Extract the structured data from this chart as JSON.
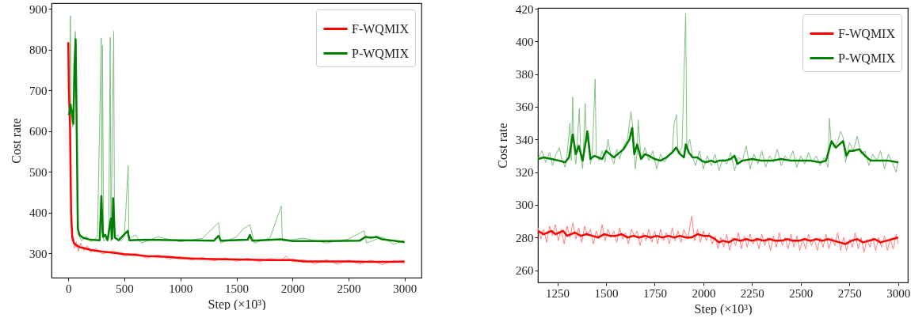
{
  "chart_data": [
    {
      "type": "line",
      "xlabel": "Step (×10³)",
      "ylabel": "Cost rate",
      "xlim": [
        -150,
        3150
      ],
      "ylim": [
        240,
        914
      ],
      "xticks": [
        0,
        500,
        1000,
        1500,
        2000,
        2500,
        3000
      ],
      "yticks": [
        300,
        400,
        500,
        600,
        700,
        800,
        900
      ],
      "grid": false,
      "legend": "top right",
      "series": [
        {
          "color": "#ff8080",
          "x": [
            0,
            5,
            15,
            25,
            35,
            45,
            55,
            70,
            90,
            110,
            140,
            170,
            200,
            250,
            300,
            400,
            500,
            600,
            700,
            800,
            900,
            1000,
            1100,
            1200,
            1300,
            1400,
            1500,
            1600,
            1700,
            1800,
            1900,
            1940,
            2000,
            2100,
            2200,
            2300,
            2400,
            2500,
            2600,
            2700,
            2800,
            2900,
            3000
          ],
          "values": [
            818,
            720,
            610,
            380,
            330,
            340,
            312,
            328,
            305,
            325,
            306,
            318,
            302,
            312,
            298,
            306,
            293,
            300,
            288,
            296,
            285,
            292,
            283,
            290,
            281,
            289,
            280,
            288,
            279,
            287,
            281,
            293,
            279,
            284,
            274,
            284,
            273,
            283,
            273,
            283,
            272,
            282,
            275
          ]
        },
        {
          "color": "#80c080",
          "x": [
            0,
            10,
            19,
            25,
            40,
            55,
            61,
            70,
            80,
            90,
            120,
            160,
            200,
            260,
            294,
            298,
            305,
            315,
            360,
            374,
            380,
            405,
            412,
            440,
            470,
            500,
            534,
            540,
            600,
            650,
            800,
            1000,
            1200,
            1340,
            1360,
            1500,
            1560,
            1620,
            1660,
            1800,
            1900,
            1910,
            2100,
            2300,
            2500,
            2640,
            2660,
            2800,
            2900,
            3000
          ],
          "values": [
            640,
            650,
            883,
            640,
            610,
            700,
            845,
            810,
            500,
            345,
            330,
            342,
            328,
            340,
            828,
            350,
            810,
            330,
            338,
            830,
            330,
            845,
            340,
            345,
            330,
            340,
            515,
            335,
            345,
            325,
            340,
            328,
            337,
            375,
            325,
            340,
            360,
            370,
            325,
            338,
            416,
            330,
            337,
            325,
            335,
            355,
            325,
            340,
            322,
            332
          ]
        },
        {
          "name": "F-WQMIX",
          "color": "#ff0000",
          "x": [
            0,
            5,
            15,
            25,
            35,
            50,
            70,
            100,
            150,
            200,
            300,
            400,
            500,
            600,
            700,
            800,
            900,
            1000,
            1200,
            1400,
            1600,
            1800,
            2000,
            2100,
            2300,
            2500,
            2700,
            2900,
            3000
          ],
          "values": [
            818,
            700,
            620,
            400,
            340,
            325,
            320,
            315,
            312,
            308,
            304,
            301,
            298,
            296,
            293,
            292,
            291,
            288,
            286,
            285,
            284,
            283,
            283,
            280,
            280,
            280,
            279,
            279,
            280
          ]
        },
        {
          "name": "P-WQMIX",
          "color": "#008000",
          "x": [
            0,
            10,
            20,
            35,
            45,
            55,
            65,
            75,
            85,
            100,
            130,
            200,
            280,
            295,
            310,
            330,
            350,
            380,
            390,
            400,
            415,
            450,
            530,
            545,
            700,
            1000,
            1300,
            1340,
            1360,
            1600,
            1620,
            1640,
            1900,
            2000,
            2300,
            2600,
            2650,
            2700,
            2750,
            2800,
            3000
          ],
          "values": [
            640,
            642,
            665,
            640,
            618,
            760,
            825,
            600,
            360,
            345,
            338,
            333,
            332,
            440,
            340,
            345,
            332,
            385,
            335,
            435,
            338,
            332,
            355,
            332,
            333,
            332,
            331,
            343,
            331,
            333,
            345,
            331,
            334,
            330,
            330,
            331,
            340,
            338,
            340,
            334,
            327
          ]
        }
      ]
    },
    {
      "type": "line",
      "xlabel": "Step (×10³)",
      "ylabel": "Cost rate",
      "xlim": [
        1150,
        3050
      ],
      "ylim": [
        252.5,
        420.5
      ],
      "xticks": [
        1250,
        1500,
        1750,
        2000,
        2250,
        2500,
        2750,
        3000
      ],
      "yticks": [
        260,
        280,
        300,
        320,
        340,
        360,
        380,
        400,
        420
      ],
      "grid": false,
      "legend": "top right",
      "series": [
        {
          "color": "#ff8080",
          "x": [
            1150,
            1165,
            1180,
            1195,
            1210,
            1225,
            1240,
            1255,
            1270,
            1285,
            1300,
            1315,
            1330,
            1345,
            1360,
            1375,
            1390,
            1405,
            1420,
            1435,
            1450,
            1465,
            1480,
            1495,
            1510,
            1525,
            1540,
            1555,
            1570,
            1585,
            1600,
            1615,
            1630,
            1645,
            1660,
            1675,
            1690,
            1705,
            1720,
            1735,
            1750,
            1765,
            1780,
            1795,
            1810,
            1825,
            1840,
            1855,
            1870,
            1885,
            1900,
            1920,
            1940,
            1955,
            1970,
            1985,
            2000,
            2015,
            2030,
            2045,
            2060,
            2075,
            2090,
            2105,
            2120,
            2135,
            2150,
            2165,
            2180,
            2195,
            2210,
            2225,
            2240,
            2255,
            2270,
            2285,
            2300,
            2315,
            2330,
            2345,
            2360,
            2375,
            2390,
            2405,
            2420,
            2435,
            2450,
            2465,
            2480,
            2495,
            2510,
            2525,
            2540,
            2555,
            2570,
            2585,
            2600,
            2615,
            2630,
            2645,
            2660,
            2675,
            2690,
            2705,
            2720,
            2735,
            2750,
            2765,
            2780,
            2795,
            2810,
            2825,
            2840,
            2855,
            2870,
            2885,
            2900,
            2915,
            2930,
            2945,
            2960,
            2975,
            2990,
            3000
          ],
          "values": [
            286,
            279,
            285,
            277,
            287,
            281,
            288,
            278,
            285,
            276,
            287,
            280,
            289,
            279,
            286,
            277,
            287,
            281,
            285,
            276,
            284,
            279,
            288,
            278,
            285,
            280,
            284,
            277,
            286,
            279,
            283,
            276,
            285,
            281,
            284,
            275,
            283,
            278,
            285,
            277,
            284,
            276,
            285,
            278,
            283,
            276,
            286,
            278,
            284,
            277,
            285,
            279,
            293,
            278,
            285,
            277,
            284,
            278,
            283,
            276,
            281,
            273,
            280,
            274,
            282,
            272,
            280,
            275,
            283,
            273,
            281,
            274,
            282,
            276,
            280,
            273,
            282,
            275,
            280,
            272,
            281,
            274,
            283,
            275,
            280,
            273,
            282,
            274,
            281,
            272,
            279,
            273,
            282,
            275,
            279,
            272,
            280,
            274,
            282,
            273,
            280,
            275,
            283,
            272,
            280,
            272,
            279,
            274,
            283,
            273,
            280,
            271,
            279,
            274,
            280,
            272,
            280,
            274,
            281,
            272,
            279,
            273,
            282,
            276
          ]
        },
        {
          "color": "#80c080",
          "x": [
            1150,
            1170,
            1190,
            1210,
            1225,
            1240,
            1260,
            1275,
            1290,
            1300,
            1315,
            1322,
            1329,
            1335,
            1345,
            1363,
            1370,
            1380,
            1393,
            1400,
            1410,
            1420,
            1430,
            1444,
            1450,
            1465,
            1480,
            1495,
            1510,
            1525,
            1540,
            1555,
            1570,
            1590,
            1610,
            1628,
            1640,
            1650,
            1660,
            1665,
            1680,
            1700,
            1720,
            1740,
            1760,
            1780,
            1800,
            1820,
            1840,
            1850,
            1862,
            1870,
            1890,
            1909,
            1915,
            1930,
            1945,
            1960,
            1980,
            2000,
            2020,
            2040,
            2060,
            2080,
            2100,
            2120,
            2140,
            2160,
            2180,
            2200,
            2220,
            2240,
            2260,
            2280,
            2300,
            2320,
            2340,
            2360,
            2380,
            2400,
            2420,
            2440,
            2460,
            2480,
            2500,
            2520,
            2540,
            2560,
            2580,
            2600,
            2620,
            2640,
            2647,
            2655,
            2670,
            2690,
            2705,
            2718,
            2730,
            2750,
            2770,
            2790,
            2810,
            2830,
            2850,
            2870,
            2890,
            2910,
            2930,
            2950,
            2970,
            2990,
            3000
          ],
          "values": [
            328,
            333,
            326,
            332,
            324,
            330,
            335,
            327,
            323,
            331,
            350,
            327,
            366,
            335,
            325,
            359,
            330,
            322,
            362,
            338,
            344,
            325,
            332,
            377,
            330,
            327,
            333,
            326,
            340,
            330,
            325,
            334,
            328,
            336,
            340,
            357,
            345,
            322,
            332,
            352,
            328,
            335,
            327,
            333,
            322,
            331,
            326,
            330,
            333,
            350,
            355,
            331,
            335,
            417,
            334,
            340,
            329,
            324,
            333,
            322,
            330,
            324,
            331,
            321,
            328,
            325,
            332,
            321,
            329,
            327,
            336,
            322,
            331,
            325,
            333,
            323,
            330,
            326,
            334,
            324,
            330,
            327,
            333,
            323,
            330,
            325,
            332,
            326,
            330,
            324,
            329,
            323,
            353,
            340,
            335,
            339,
            345,
            341,
            326,
            338,
            333,
            342,
            331,
            333,
            324,
            331,
            327,
            333,
            322,
            331,
            326,
            320,
            327
          ]
        },
        {
          "name": "F-WQMIX",
          "color": "#ff0000",
          "x": [
            1150,
            1180,
            1200,
            1220,
            1240,
            1260,
            1280,
            1300,
            1320,
            1340,
            1370,
            1400,
            1430,
            1460,
            1490,
            1520,
            1550,
            1580,
            1610,
            1640,
            1670,
            1700,
            1730,
            1760,
            1790,
            1820,
            1850,
            1880,
            1910,
            1940,
            1970,
            2000,
            2030,
            2060,
            2080,
            2100,
            2130,
            2160,
            2190,
            2220,
            2250,
            2280,
            2310,
            2340,
            2370,
            2400,
            2430,
            2460,
            2490,
            2520,
            2550,
            2580,
            2610,
            2640,
            2670,
            2700,
            2730,
            2760,
            2790,
            2820,
            2850,
            2880,
            2910,
            2940,
            2970,
            3000
          ],
          "values": [
            284,
            282,
            283,
            284,
            282,
            283,
            284,
            281,
            282,
            283,
            281,
            282,
            281,
            280,
            282,
            281,
            281,
            282,
            280,
            281,
            280,
            281,
            280,
            281,
            280,
            281,
            280,
            281,
            280,
            280,
            282,
            281,
            281,
            279,
            277,
            278,
            277,
            279,
            278,
            279,
            278,
            279,
            278,
            279,
            278,
            278,
            279,
            278,
            278,
            279,
            278,
            279,
            278,
            279,
            278,
            277,
            276,
            278,
            279,
            277,
            278,
            279,
            277,
            278,
            279,
            280
          ]
        },
        {
          "name": "P-WQMIX",
          "color": "#008000",
          "x": [
            1150,
            1180,
            1220,
            1260,
            1290,
            1310,
            1329,
            1345,
            1360,
            1380,
            1404,
            1420,
            1440,
            1460,
            1480,
            1500,
            1520,
            1540,
            1560,
            1590,
            1620,
            1634,
            1645,
            1660,
            1680,
            1700,
            1720,
            1750,
            1780,
            1810,
            1840,
            1860,
            1880,
            1900,
            1910,
            1925,
            1945,
            1970,
            1990,
            2010,
            2040,
            2060,
            2080,
            2110,
            2140,
            2160,
            2175,
            2200,
            2250,
            2300,
            2350,
            2400,
            2450,
            2500,
            2550,
            2600,
            2630,
            2658,
            2680,
            2717,
            2735,
            2750,
            2770,
            2800,
            2830,
            2860,
            2900,
            2950,
            3000
          ],
          "values": [
            328,
            329,
            328,
            327,
            326,
            329,
            343,
            331,
            336,
            327,
            345,
            328,
            330,
            329,
            328,
            333,
            331,
            329,
            331,
            334,
            340,
            347,
            331,
            337,
            328,
            331,
            330,
            328,
            327,
            329,
            332,
            335,
            331,
            329,
            337,
            332,
            329,
            329,
            327,
            326,
            327,
            326,
            327,
            327,
            328,
            330,
            325,
            327,
            328,
            327,
            327,
            328,
            327,
            327,
            327,
            326,
            327,
            339,
            335,
            339,
            330,
            333,
            333,
            334,
            330,
            327,
            327,
            327,
            326
          ]
        }
      ]
    }
  ]
}
